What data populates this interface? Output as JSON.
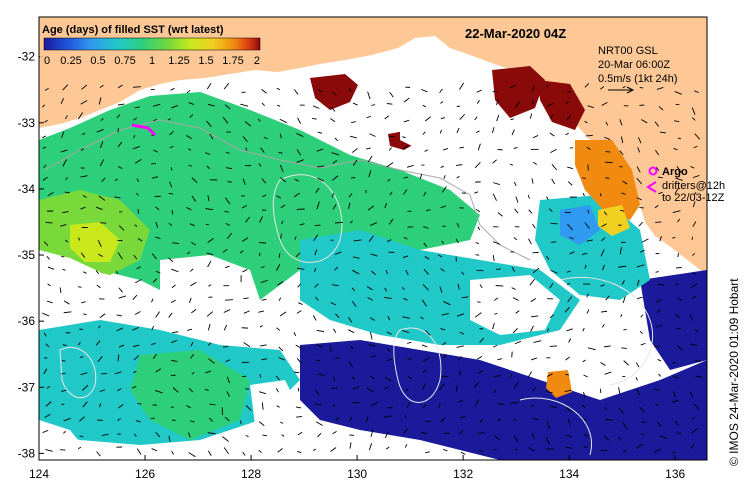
{
  "map": {
    "title": "22-Mar-2020 04Z",
    "colorbar": {
      "title": "Age (days) of filled SST (wrt latest)",
      "ticks": [
        "0",
        "0.25",
        "0.5",
        "0.75",
        "1",
        "1.25",
        "1.5",
        "1.75",
        "2"
      ],
      "colors": [
        "#1a1a9a",
        "#1f4fd6",
        "#2f9af0",
        "#21c8c8",
        "#2ecf7a",
        "#79d93a",
        "#c8e81c",
        "#f0d020",
        "#f08a10",
        "#d83a10",
        "#8a0a0a"
      ]
    },
    "info": {
      "line1": "NRT00 GSL",
      "line2": "20-Mar 06:00Z",
      "line3": "0.5m/s (1kt 24h)"
    },
    "legend": {
      "argo": "Argo",
      "drifters1": "drifters@12h",
      "drifters2": "to 22/03-12Z"
    },
    "credit": "© IMOS 24-Mar-2020 01:09 Hobart",
    "x_ticks": [
      "124",
      "126",
      "128",
      "130",
      "132",
      "134",
      "136"
    ],
    "y_ticks": [
      "-32",
      "-33",
      "-34",
      "-35",
      "-36",
      "-37",
      "-38"
    ],
    "land_color": "#fdc896",
    "axis_limits": {
      "lon": [
        124,
        136.6
      ],
      "lat": [
        -38.1,
        -31.4
      ]
    }
  }
}
